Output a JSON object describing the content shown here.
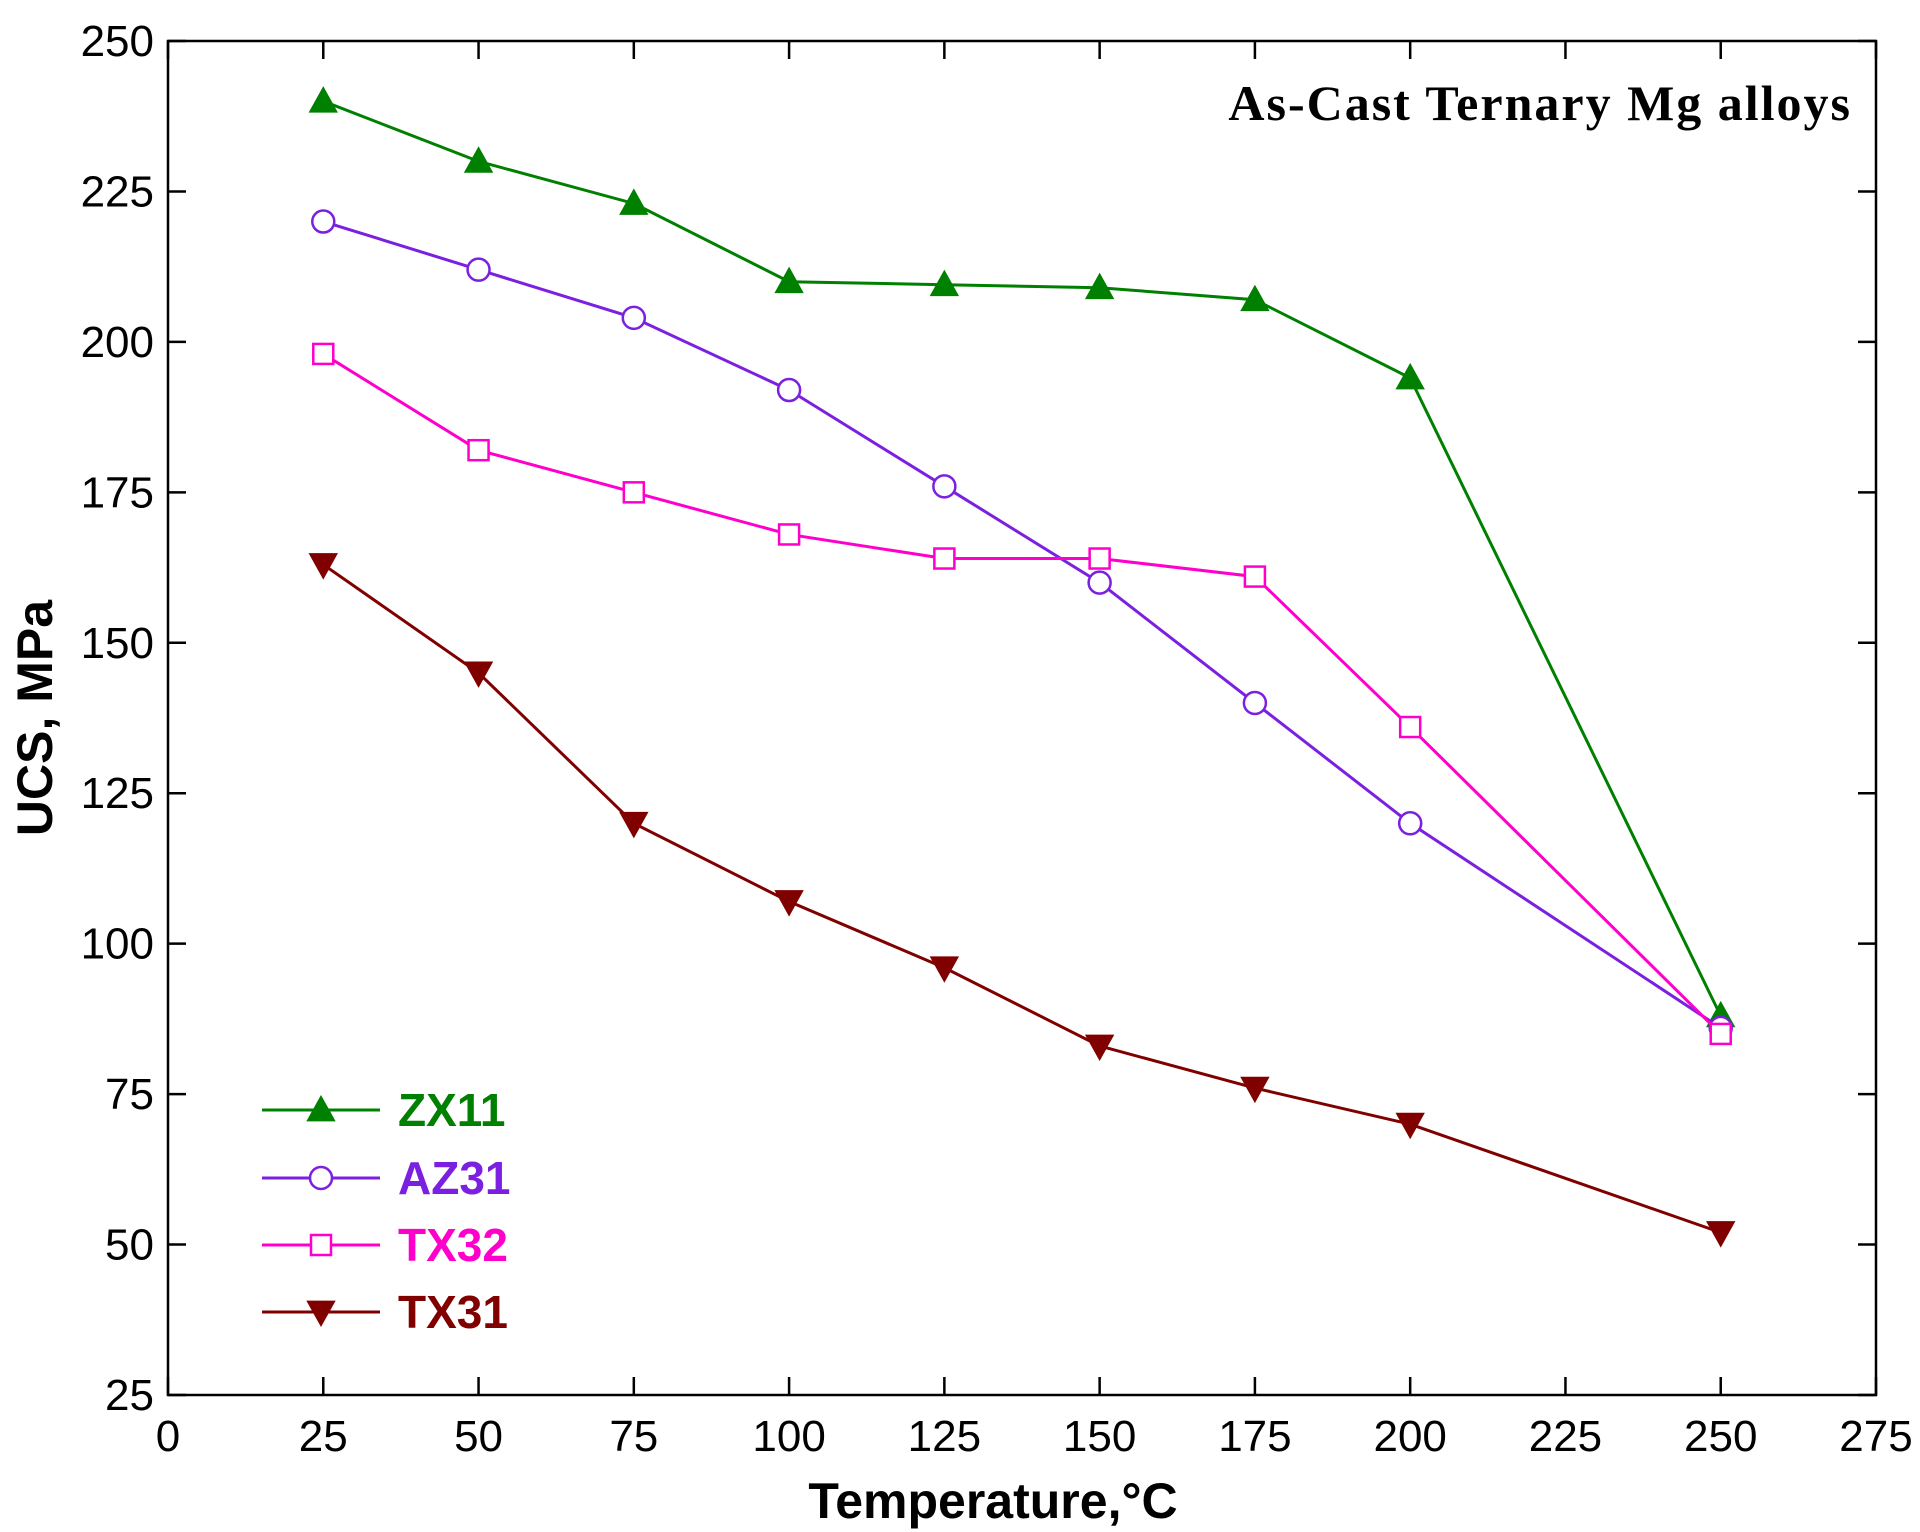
{
  "chart_data": {
    "type": "line",
    "title": "As-Cast Ternary Mg alloys",
    "xlabel": "Temperature,°C",
    "ylabel": "UCS, MPa",
    "xlim": [
      0,
      275
    ],
    "ylim": [
      25,
      250
    ],
    "xticks": [
      0,
      25,
      50,
      75,
      100,
      125,
      150,
      175,
      200,
      225,
      250,
      275
    ],
    "yticks": [
      25,
      50,
      75,
      100,
      125,
      150,
      175,
      200,
      225,
      250
    ],
    "grid": false,
    "legend_position": "bottom-left",
    "series": [
      {
        "name": "ZX11",
        "color": "#008000",
        "marker": "triangle-up-filled",
        "x": [
          25,
          50,
          75,
          100,
          125,
          150,
          175,
          200,
          250
        ],
        "values": [
          240,
          230,
          223,
          210,
          209.5,
          209,
          207,
          194,
          88
        ]
      },
      {
        "name": "AZ31",
        "color": "#7B1FE0",
        "marker": "circle-open",
        "x": [
          25,
          50,
          75,
          100,
          125,
          150,
          175,
          200,
          250
        ],
        "values": [
          220,
          212,
          204,
          192,
          176,
          160,
          140,
          120,
          86
        ]
      },
      {
        "name": "TX32",
        "color": "#FF00CC",
        "marker": "square-open",
        "x": [
          25,
          50,
          75,
          100,
          125,
          150,
          175,
          200,
          250
        ],
        "values": [
          198,
          182,
          175,
          168,
          164,
          164,
          161,
          136,
          85
        ]
      },
      {
        "name": "TX31",
        "color": "#800000",
        "marker": "triangle-down-filled",
        "x": [
          25,
          50,
          75,
          100,
          125,
          150,
          175,
          200,
          250
        ],
        "values": [
          163,
          145,
          120,
          107,
          96,
          83,
          76,
          70,
          52
        ]
      }
    ]
  }
}
